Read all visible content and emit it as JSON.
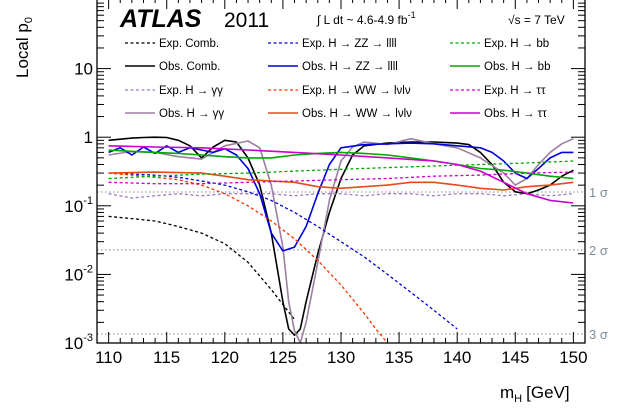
{
  "chart_data": {
    "type": "line",
    "xscale": "linear",
    "yscale": "log",
    "xlim": [
      109,
      151
    ],
    "ylim": [
      0.001,
      100
    ],
    "ylabel": "Local p",
    "ylabel_sub": "0",
    "xlabel": "m",
    "xlabel_sub": "H",
    "xlabel_unit": "[GeV]",
    "grid": false,
    "header": {
      "experiment": "ATLAS",
      "year": "2011",
      "luminosity": "∫ L dt ~ 4.6-4.9 fb",
      "luminosity_sup": "-1",
      "energy": "√s = 7 TeV"
    },
    "x_ticks": [
      110,
      115,
      120,
      125,
      130,
      135,
      140,
      145,
      150
    ],
    "y_ticks": [
      {
        "value": 0.001,
        "base": "10",
        "exp": "-3"
      },
      {
        "value": 0.01,
        "base": "10",
        "exp": "-2"
      },
      {
        "value": 0.1,
        "base": "10",
        "exp": "-1"
      },
      {
        "value": 1,
        "base": "1",
        "exp": ""
      },
      {
        "value": 10,
        "base": "10",
        "exp": ""
      }
    ],
    "sigma_lines": [
      {
        "label": "1 σ",
        "p": 0.1587
      },
      {
        "label": "2 σ",
        "p": 0.02275
      },
      {
        "label": "3 σ",
        "p": 0.00135
      }
    ],
    "series": [
      {
        "name": "Exp. Comb.",
        "color": "#000000",
        "dash": true,
        "x": [
          110,
          112,
          114,
          116,
          118,
          120,
          122,
          124,
          126,
          128
        ],
        "y": [
          0.07,
          0.065,
          0.06,
          0.05,
          0.04,
          0.028,
          0.015,
          0.006,
          0.0022,
          0.0008
        ]
      },
      {
        "name": "Obs. Comb.",
        "color": "#000000",
        "dash": false,
        "x": [
          110,
          112,
          113,
          114,
          115,
          116,
          117,
          118,
          119,
          120,
          121,
          122,
          123,
          124,
          125,
          125.5,
          126,
          126.5,
          127,
          128,
          129,
          130,
          131,
          132,
          134,
          136,
          138,
          140,
          141,
          142,
          143,
          144,
          145,
          146,
          147,
          148,
          149,
          150
        ],
        "y": [
          0.9,
          0.97,
          0.99,
          1.0,
          0.99,
          0.9,
          0.75,
          0.5,
          0.72,
          0.9,
          0.85,
          0.5,
          0.2,
          0.04,
          0.004,
          0.0016,
          0.0013,
          0.0016,
          0.004,
          0.02,
          0.08,
          0.25,
          0.55,
          0.75,
          0.82,
          0.85,
          0.85,
          0.82,
          0.78,
          0.6,
          0.4,
          0.22,
          0.16,
          0.15,
          0.17,
          0.2,
          0.27,
          0.33
        ]
      },
      {
        "name": "Exp. H → γγ",
        "color": "#a07cc0",
        "dash": true,
        "x": [
          110,
          112,
          114,
          116,
          118,
          120,
          122,
          124,
          126,
          128,
          130,
          132,
          134,
          136,
          138,
          140,
          142,
          144,
          146,
          148,
          150
        ],
        "y": [
          0.15,
          0.13,
          0.14,
          0.15,
          0.14,
          0.15,
          0.15,
          0.15,
          0.14,
          0.15,
          0.15,
          0.14,
          0.15,
          0.15,
          0.14,
          0.15,
          0.15,
          0.14,
          0.15,
          0.14,
          0.15
        ]
      },
      {
        "name": "Obs. H → γγ",
        "color": "#9d7fa3",
        "dash": false,
        "x": [
          110,
          112,
          114,
          116,
          118,
          120,
          122,
          123,
          124,
          125,
          125.5,
          126,
          126.5,
          127,
          128,
          129,
          130,
          131,
          132,
          134,
          136,
          138,
          140,
          142,
          144,
          145,
          146,
          147,
          148,
          149,
          150
        ],
        "y": [
          0.55,
          0.62,
          0.6,
          0.52,
          0.48,
          0.75,
          0.88,
          0.7,
          0.2,
          0.025,
          0.004,
          0.0015,
          0.001,
          0.002,
          0.015,
          0.12,
          0.45,
          0.72,
          0.85,
          0.78,
          0.95,
          0.8,
          0.7,
          0.5,
          0.3,
          0.2,
          0.25,
          0.4,
          0.6,
          0.8,
          0.95
        ]
      },
      {
        "name": "Exp. H → ZZ → llll",
        "color": "#0000dd",
        "dash": true,
        "x": [
          110,
          112,
          114,
          116,
          118,
          120,
          122,
          124,
          126,
          128,
          130,
          132,
          134,
          136,
          138,
          140,
          142,
          144
        ],
        "y": [
          0.3,
          0.29,
          0.28,
          0.26,
          0.23,
          0.2,
          0.16,
          0.12,
          0.08,
          0.05,
          0.03,
          0.018,
          0.01,
          0.0055,
          0.003,
          0.0016,
          0.00085,
          0.00045
        ]
      },
      {
        "name": "Obs. H → ZZ → llll",
        "color": "#0000dd",
        "dash": false,
        "x": [
          110,
          111,
          112,
          113,
          114,
          115,
          116,
          117,
          118,
          119,
          120,
          121,
          122,
          123,
          124,
          125,
          126,
          127,
          128,
          129,
          130,
          132,
          134,
          136,
          138,
          140,
          142,
          143,
          144,
          145,
          146,
          147,
          148,
          149,
          150
        ],
        "y": [
          0.6,
          0.7,
          0.55,
          0.72,
          0.58,
          0.75,
          0.6,
          0.7,
          0.65,
          0.6,
          0.68,
          0.55,
          0.35,
          0.15,
          0.04,
          0.022,
          0.025,
          0.05,
          0.15,
          0.4,
          0.7,
          0.78,
          0.8,
          0.82,
          0.8,
          0.75,
          0.7,
          0.6,
          0.45,
          0.3,
          0.25,
          0.35,
          0.5,
          0.6,
          0.6
        ]
      },
      {
        "name": "Exp. H → WW → lνlν",
        "color": "#ff3300",
        "dash": true,
        "x": [
          110,
          112,
          114,
          116,
          118,
          120,
          122,
          124,
          126,
          128,
          130,
          132,
          133,
          134
        ],
        "y": [
          0.3,
          0.28,
          0.26,
          0.24,
          0.2,
          0.15,
          0.1,
          0.06,
          0.033,
          0.016,
          0.007,
          0.0027,
          0.0016,
          0.001
        ]
      },
      {
        "name": "Obs. H → WW → lνlν",
        "color": "#e84a1a",
        "dash": false,
        "x": [
          110,
          114,
          118,
          120,
          122,
          124,
          126,
          128,
          130,
          132,
          134,
          136,
          138,
          140,
          142,
          144,
          146,
          148,
          150
        ],
        "y": [
          0.3,
          0.31,
          0.3,
          0.27,
          0.24,
          0.23,
          0.22,
          0.19,
          0.18,
          0.19,
          0.2,
          0.22,
          0.22,
          0.2,
          0.18,
          0.17,
          0.19,
          0.2,
          0.22
        ]
      },
      {
        "name": "Exp. H → bb",
        "color": "#00aa00",
        "dash": true,
        "x": [
          110,
          114,
          118,
          122,
          126,
          130,
          134,
          138,
          142,
          146,
          150
        ],
        "y": [
          0.25,
          0.27,
          0.29,
          0.3,
          0.32,
          0.34,
          0.36,
          0.38,
          0.4,
          0.42,
          0.45
        ]
      },
      {
        "name": "Obs. H → bb",
        "color": "#00aa00",
        "dash": false,
        "x": [
          110,
          112,
          114,
          116,
          118,
          120,
          122,
          124,
          126,
          128,
          130,
          132,
          134,
          136,
          138,
          140,
          142,
          144,
          146,
          148,
          150
        ],
        "y": [
          0.65,
          0.62,
          0.6,
          0.58,
          0.55,
          0.52,
          0.5,
          0.5,
          0.55,
          0.58,
          0.6,
          0.58,
          0.55,
          0.5,
          0.45,
          0.4,
          0.35,
          0.33,
          0.3,
          0.27,
          0.25
        ]
      },
      {
        "name": "Exp. H → ττ",
        "color": "#cc00cc",
        "dash": true,
        "x": [
          110,
          114,
          118,
          122,
          126,
          130,
          134,
          138,
          142,
          146,
          150
        ],
        "y": [
          0.22,
          0.21,
          0.21,
          0.22,
          0.23,
          0.24,
          0.25,
          0.27,
          0.28,
          0.3,
          0.31
        ]
      },
      {
        "name": "Obs. H → ττ",
        "color": "#cc00cc",
        "dash": false,
        "x": [
          110,
          114,
          118,
          122,
          126,
          130,
          134,
          138,
          140,
          142,
          144,
          146,
          148,
          150
        ],
        "y": [
          0.75,
          0.72,
          0.7,
          0.65,
          0.6,
          0.55,
          0.5,
          0.45,
          0.4,
          0.32,
          0.22,
          0.15,
          0.12,
          0.11
        ]
      }
    ]
  }
}
